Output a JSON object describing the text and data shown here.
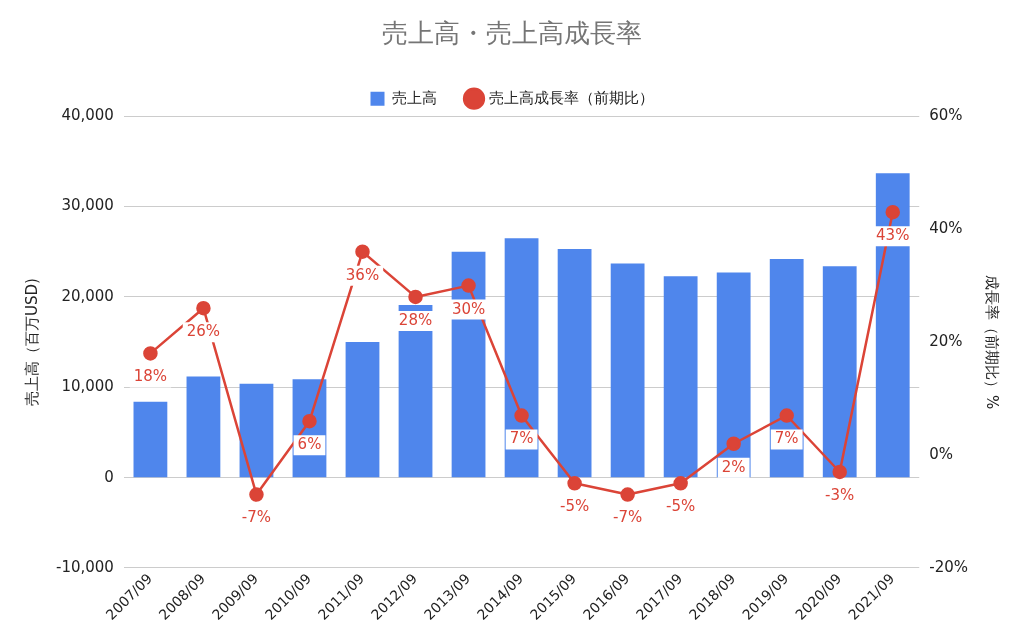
{
  "chart_data": {
    "type": "bar",
    "title": "売上高・売上高成長率",
    "categories": [
      "2007/09",
      "2008/09",
      "2009/09",
      "2010/09",
      "2011/09",
      "2012/09",
      "2013/09",
      "2014/09",
      "2015/09",
      "2016/09",
      "2017/09",
      "2018/09",
      "2019/09",
      "2020/09",
      "2021/09"
    ],
    "series": [
      {
        "name": "売上高",
        "color": "#4f86ec",
        "values": [
          8400,
          11200,
          10400,
          10900,
          15000,
          19100,
          25000,
          26500,
          25300,
          23700,
          22300,
          22700,
          24200,
          23400,
          33700
        ]
      },
      {
        "name": "売上高成長率（前期比）",
        "type": "line",
        "axis": "y2",
        "color": "#db4437",
        "marker": "circle",
        "values": [
          18,
          26,
          -7,
          6,
          36,
          28,
          30,
          7,
          -5,
          -7,
          -5,
          2,
          7,
          -3,
          43
        ],
        "value_labels": [
          "18%",
          "26%",
          "-7%",
          "6%",
          "36%",
          "28%",
          "30%",
          "7%",
          "-5%",
          "-7%",
          "-5%",
          "2%",
          "7%",
          "-3%",
          "43%"
        ]
      }
    ],
    "ylabel": "売上高（百万USD)",
    "y2label": "成長率（前期比）%",
    "ylim": [
      -10000,
      40000
    ],
    "yticks": [
      {
        "value": -10000,
        "label": "-10,000"
      },
      {
        "value": 0,
        "label": "0"
      },
      {
        "value": 10000,
        "label": "10,000"
      },
      {
        "value": 20000,
        "label": "20,000"
      },
      {
        "value": 30000,
        "label": "30,000"
      },
      {
        "value": 40000,
        "label": "40,000"
      }
    ],
    "y2lim": [
      -20,
      60
    ],
    "y2ticks": [
      {
        "value": -20,
        "label": "-20%"
      },
      {
        "value": 0,
        "label": "0%"
      },
      {
        "value": 20,
        "label": "20%"
      },
      {
        "value": 40,
        "label": "40%"
      },
      {
        "value": 60,
        "label": "60%"
      }
    ],
    "grid": "y",
    "legend": "top"
  }
}
